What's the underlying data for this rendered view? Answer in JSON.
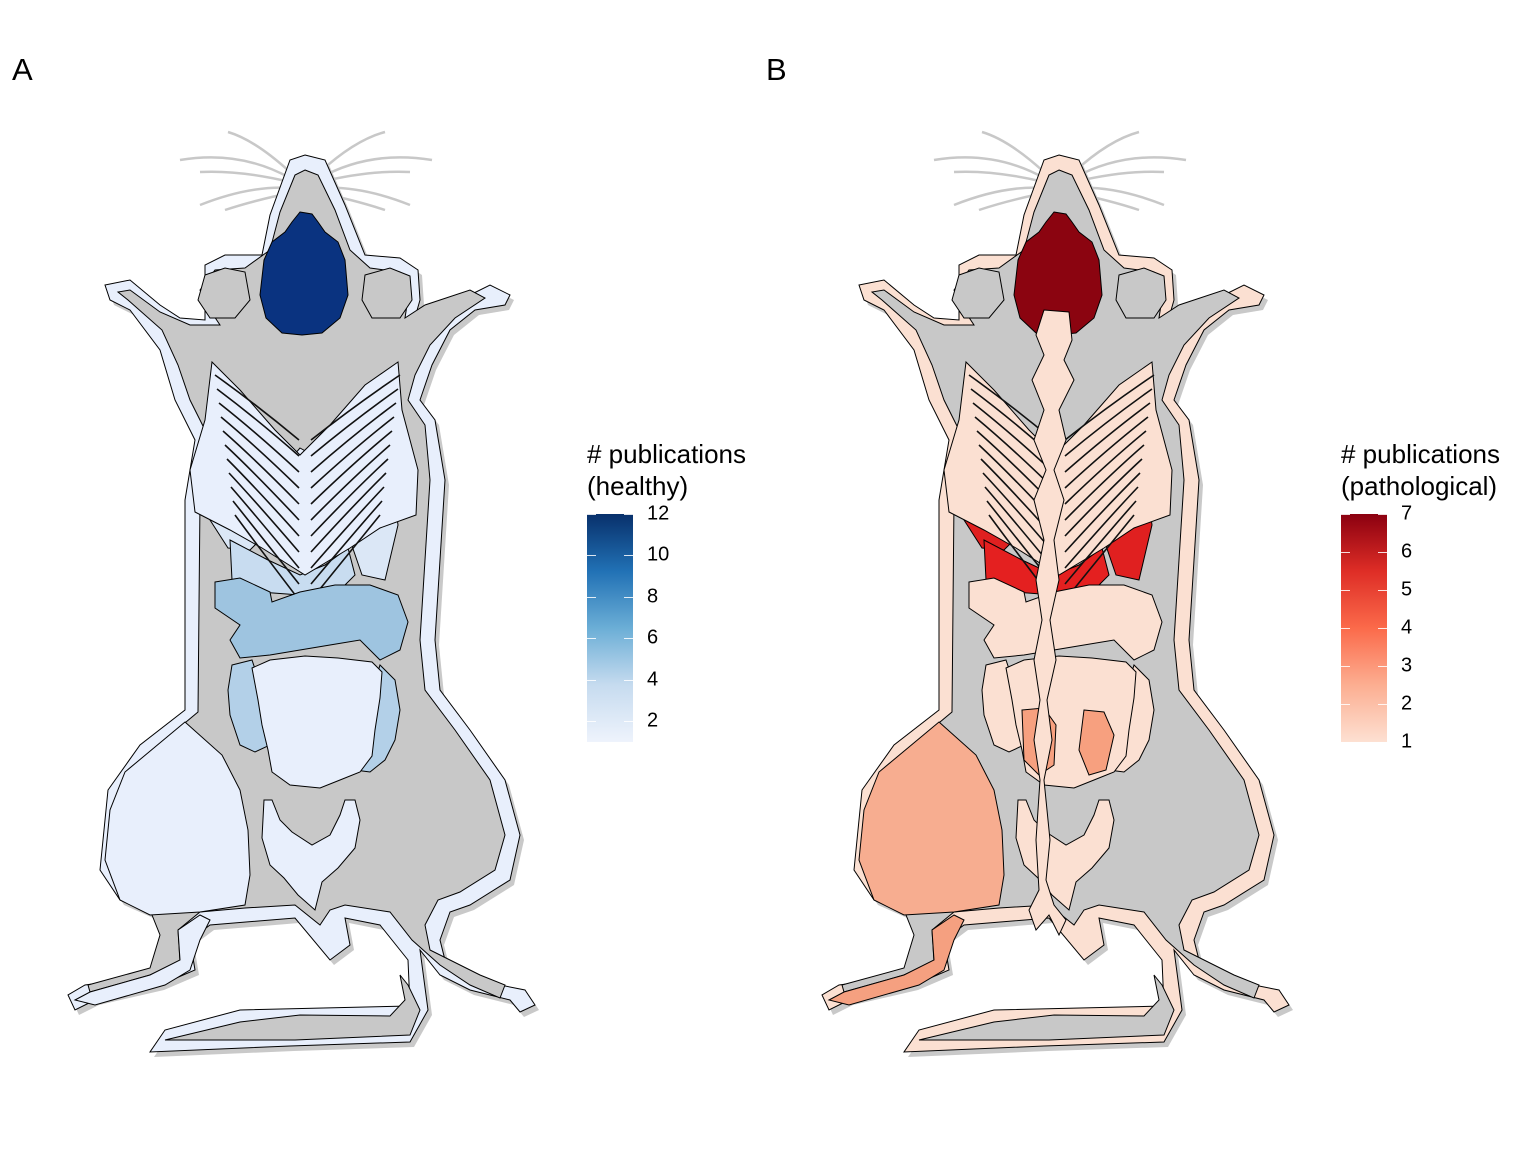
{
  "panels": [
    {
      "letter": "A",
      "legend": {
        "title_line1": "# publications",
        "title_line2": "(healthy)",
        "min": 1,
        "max": 12,
        "ticks": [
          "2",
          "4",
          "6",
          "8",
          "10",
          "12"
        ],
        "tick_values": [
          2,
          4,
          6,
          8,
          10,
          12
        ],
        "gradient": [
          "#eef3fc",
          "#c6dbef",
          "#6baed6",
          "#2171b5",
          "#08306b"
        ]
      },
      "organs": {
        "body": "#e8effc",
        "brain": "#0a3380",
        "lungs": "#dbe7f6",
        "ribs": "#e8effc",
        "heart": "#e8effc",
        "liver": "#c8dcf0",
        "stomach": "#9ec4e0",
        "colon": "#b3d0e8",
        "small_intestine": "#e8effc",
        "kidney": "#e8effc",
        "bladder": "#e8effc",
        "muscle": "#e8effc",
        "leg": "#e8effc",
        "tail": "#e8effc",
        "spine": null
      }
    },
    {
      "letter": "B",
      "legend": {
        "title_line1": "# publications",
        "title_line2": "(pathological)",
        "min": 1,
        "max": 7,
        "ticks": [
          "1",
          "2",
          "3",
          "4",
          "5",
          "6",
          "7"
        ],
        "tick_values": [
          1,
          2,
          3,
          4,
          5,
          6,
          7
        ],
        "gradient": [
          "#fde0d2",
          "#fcae91",
          "#fb6a4a",
          "#de2d26",
          "#8b0010"
        ]
      },
      "organs": {
        "body": "#fbe0d2",
        "brain": "#8b0410",
        "lungs": "#e02020",
        "ribs": "#fbe0d2",
        "heart": "#f47b5a",
        "liver": "#e42020",
        "stomach": "#fbe0d2",
        "colon": "#fbe0d2",
        "small_intestine": "#fbe0d2",
        "kidney": "#f7a07f",
        "bladder": "#fbe0d2",
        "muscle": "#f7ad90",
        "leg": "#f5a080",
        "tail": "#fbe0d2",
        "spine": "#fbe0d2"
      }
    }
  ]
}
